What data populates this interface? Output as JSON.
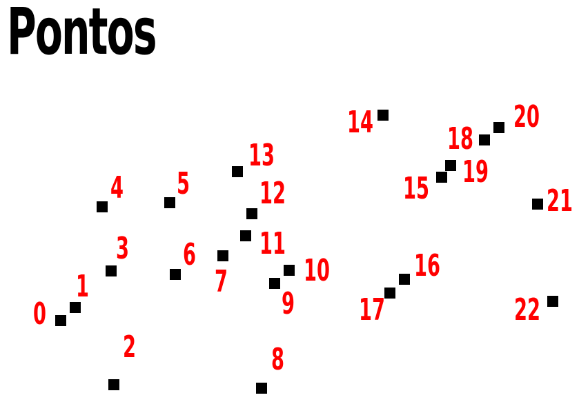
{
  "title": "Pontos",
  "colors": {
    "point": "#000000",
    "label": "#ff0000",
    "title": "#000000",
    "background": "#ffffff"
  },
  "points": [
    {
      "label": "0"
    },
    {
      "label": "1"
    },
    {
      "label": "2"
    },
    {
      "label": "3"
    },
    {
      "label": "4"
    },
    {
      "label": "5"
    },
    {
      "label": "6"
    },
    {
      "label": "7"
    },
    {
      "label": "8"
    },
    {
      "label": "9"
    },
    {
      "label": "10"
    },
    {
      "label": "11"
    },
    {
      "label": "12"
    },
    {
      "label": "13"
    },
    {
      "label": "14"
    },
    {
      "label": "15"
    },
    {
      "label": "16"
    },
    {
      "label": "17"
    },
    {
      "label": "18"
    },
    {
      "label": "19"
    },
    {
      "label": "20"
    },
    {
      "label": "21"
    },
    {
      "label": "22"
    }
  ]
}
